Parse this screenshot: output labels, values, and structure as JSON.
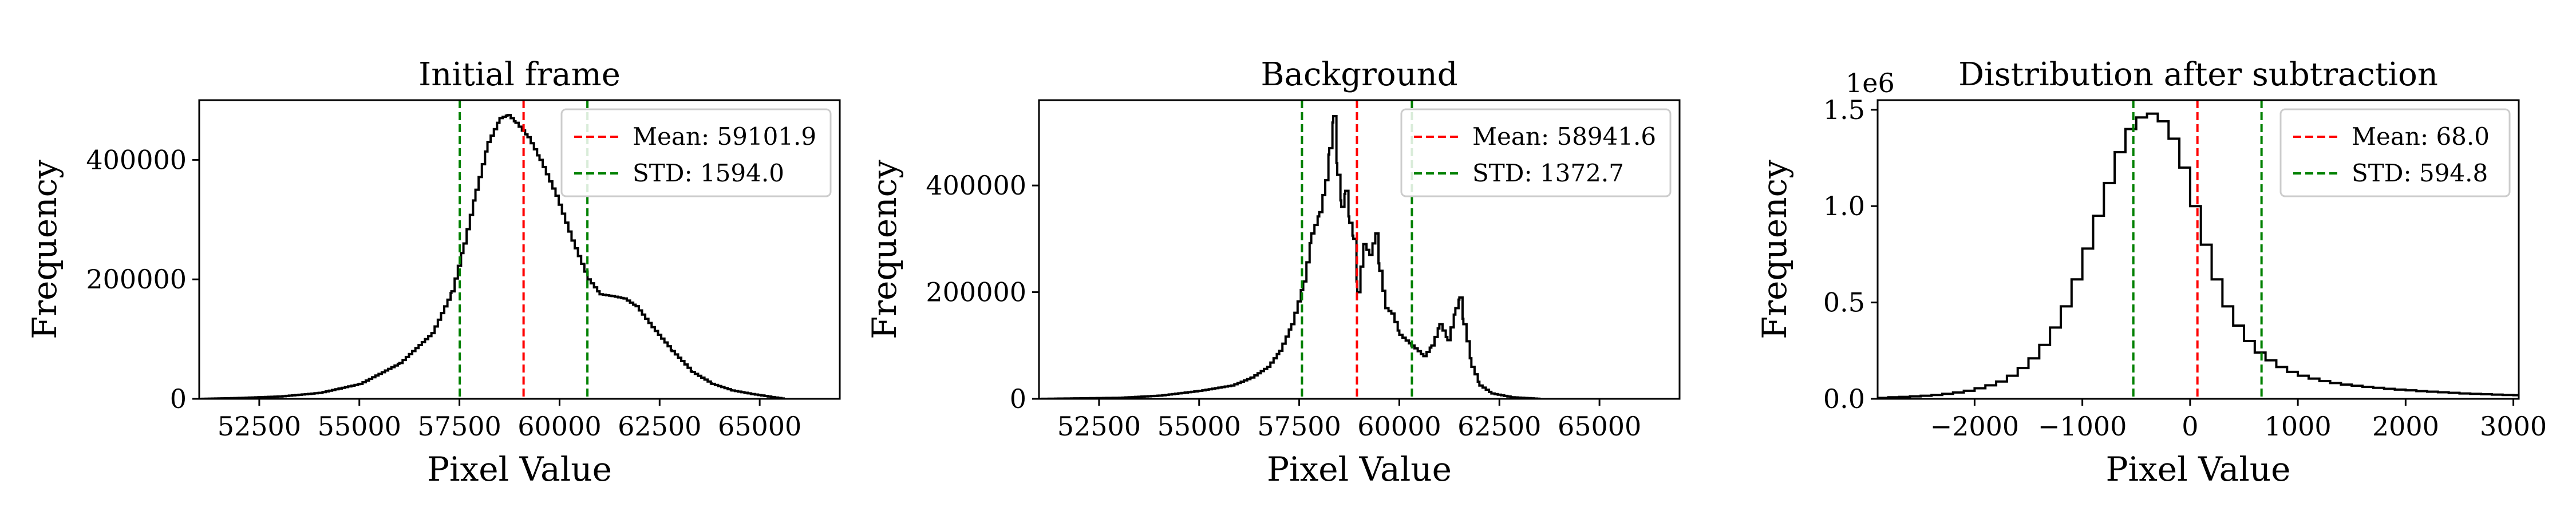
{
  "chart_data": [
    {
      "type": "histogram",
      "title": "Initial frame",
      "xlabel": "Pixel Value",
      "ylabel": "Frequency",
      "xlim": [
        51000,
        67000
      ],
      "ylim": [
        0,
        500000
      ],
      "xticks": [
        52500,
        55000,
        57500,
        60000,
        62500,
        65000
      ],
      "xtick_labels": [
        "52500",
        "55000",
        "57500",
        "60000",
        "62500",
        "65000"
      ],
      "yticks": [
        0,
        200000,
        400000
      ],
      "ytick_labels": [
        "0",
        "200000",
        "400000"
      ],
      "y_offset_label": "",
      "legend_position": "top-right",
      "mean": 59101.9,
      "std": 1594.0,
      "vlines": [
        {
          "x": 59101.9,
          "color": "#ff0000",
          "label": "Mean: 59101.9"
        },
        {
          "x": 57507.9,
          "color": "#008000",
          "label": "STD: 1594.0"
        },
        {
          "x": 60695.9,
          "color": "#008000",
          "label": ""
        }
      ],
      "points": [
        [
          51000,
          0
        ],
        [
          52000,
          1500
        ],
        [
          53000,
          4000
        ],
        [
          54000,
          10000
        ],
        [
          55000,
          25000
        ],
        [
          56000,
          60000
        ],
        [
          56800,
          110000
        ],
        [
          57300,
          180000
        ],
        [
          57600,
          260000
        ],
        [
          57900,
          350000
        ],
        [
          58200,
          430000
        ],
        [
          58500,
          470000
        ],
        [
          58700,
          475000
        ],
        [
          58900,
          462000
        ],
        [
          59200,
          438000
        ],
        [
          59500,
          400000
        ],
        [
          59900,
          340000
        ],
        [
          60300,
          265000
        ],
        [
          60700,
          200000
        ],
        [
          61000,
          175000
        ],
        [
          61300,
          172000
        ],
        [
          61600,
          168000
        ],
        [
          61900,
          155000
        ],
        [
          62300,
          120000
        ],
        [
          62800,
          80000
        ],
        [
          63300,
          45000
        ],
        [
          63800,
          25000
        ],
        [
          64300,
          14000
        ],
        [
          64800,
          8000
        ],
        [
          65300,
          3000
        ],
        [
          65600,
          0
        ]
      ]
    },
    {
      "type": "histogram",
      "title": "Background",
      "xlabel": "Pixel Value",
      "ylabel": "Frequency",
      "xlim": [
        51000,
        67000
      ],
      "ylim": [
        0,
        560000
      ],
      "xticks": [
        52500,
        55000,
        57500,
        60000,
        62500,
        65000
      ],
      "xtick_labels": [
        "52500",
        "55000",
        "57500",
        "60000",
        "62500",
        "65000"
      ],
      "yticks": [
        0,
        200000,
        400000
      ],
      "ytick_labels": [
        "0",
        "200000",
        "400000"
      ],
      "y_offset_label": "",
      "legend_position": "top-right",
      "mean": 58941.6,
      "std": 1372.7,
      "vlines": [
        {
          "x": 58941.6,
          "color": "#ff0000",
          "label": "Mean: 58941.6"
        },
        {
          "x": 57568.9,
          "color": "#008000",
          "label": "STD: 1372.7"
        },
        {
          "x": 60314.3,
          "color": "#008000",
          "label": ""
        }
      ],
      "points": [
        [
          51000,
          0
        ],
        [
          53000,
          2000
        ],
        [
          54000,
          6000
        ],
        [
          55000,
          15000
        ],
        [
          55800,
          25000
        ],
        [
          56300,
          40000
        ],
        [
          56700,
          60000
        ],
        [
          57000,
          90000
        ],
        [
          57300,
          140000
        ],
        [
          57600,
          220000
        ],
        [
          57800,
          310000
        ],
        [
          58000,
          350000
        ],
        [
          58150,
          410000
        ],
        [
          58250,
          470000
        ],
        [
          58350,
          530000
        ],
        [
          58450,
          420000
        ],
        [
          58550,
          360000
        ],
        [
          58650,
          390000
        ],
        [
          58750,
          330000
        ],
        [
          58850,
          300000
        ],
        [
          58950,
          200000
        ],
        [
          59100,
          290000
        ],
        [
          59250,
          270000
        ],
        [
          59400,
          310000
        ],
        [
          59500,
          240000
        ],
        [
          59650,
          170000
        ],
        [
          59800,
          160000
        ],
        [
          60000,
          120000
        ],
        [
          60300,
          100000
        ],
        [
          60600,
          80000
        ],
        [
          60800,
          100000
        ],
        [
          61000,
          140000
        ],
        [
          61200,
          110000
        ],
        [
          61400,
          170000
        ],
        [
          61500,
          190000
        ],
        [
          61600,
          140000
        ],
        [
          61800,
          60000
        ],
        [
          62000,
          25000
        ],
        [
          62300,
          10000
        ],
        [
          62800,
          3000
        ],
        [
          63500,
          0
        ]
      ]
    },
    {
      "type": "histogram",
      "title": "Distribution after subtraction",
      "xlabel": "Pixel Value",
      "ylabel": "Frequency",
      "xlim": [
        -2900,
        3050
      ],
      "ylim": [
        0,
        1550000
      ],
      "xticks": [
        -2000,
        -1000,
        0,
        1000,
        2000,
        3000
      ],
      "xtick_labels": [
        "−2000",
        "−1000",
        "0",
        "1000",
        "2000",
        "3000"
      ],
      "yticks": [
        0,
        500000,
        1000000,
        1500000
      ],
      "ytick_labels": [
        "0.0",
        "0.5",
        "1.0",
        "1.5"
      ],
      "y_offset_label": "1e6",
      "legend_position": "top-right",
      "mean": 68.0,
      "std": 594.8,
      "vlines": [
        {
          "x": 68.0,
          "color": "#ff0000",
          "label": "Mean: 68.0"
        },
        {
          "x": -526.8,
          "color": "#008000",
          "label": "STD: 594.8"
        },
        {
          "x": 662.8,
          "color": "#008000",
          "label": ""
        }
      ],
      "bin_width": 100,
      "bin_start": -2900,
      "counts": [
        5000,
        8000,
        10000,
        13000,
        16000,
        20000,
        26000,
        33000,
        42000,
        55000,
        70000,
        90000,
        120000,
        160000,
        210000,
        280000,
        370000,
        480000,
        620000,
        780000,
        950000,
        1120000,
        1280000,
        1400000,
        1460000,
        1480000,
        1440000,
        1350000,
        1200000,
        1000000,
        800000,
        620000,
        480000,
        380000,
        300000,
        240000,
        200000,
        165000,
        140000,
        120000,
        105000,
        92000,
        82000,
        74000,
        68000,
        62000,
        57000,
        52000,
        48000,
        44000,
        40000,
        37000,
        34000,
        31000,
        28000,
        26000,
        24000,
        22000,
        20000,
        19000
      ]
    }
  ]
}
